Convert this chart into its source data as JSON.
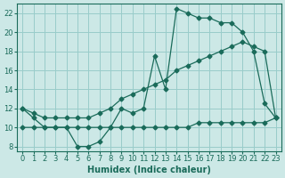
{
  "xlabel": "Humidex (Indice chaleur)",
  "xlim": [
    -0.5,
    23.5
  ],
  "ylim": [
    7.5,
    23.0
  ],
  "yticks": [
    8,
    10,
    12,
    14,
    16,
    18,
    20,
    22
  ],
  "xticks": [
    0,
    1,
    2,
    3,
    4,
    5,
    6,
    7,
    8,
    9,
    10,
    11,
    12,
    13,
    14,
    15,
    16,
    17,
    18,
    19,
    20,
    21,
    22,
    23
  ],
  "bg_color": "#cce8e6",
  "grid_color": "#99ccca",
  "line_color": "#1a6b5a",
  "line1_x": [
    0,
    1,
    2,
    3,
    4,
    5,
    6,
    7,
    8,
    9,
    10,
    11,
    12,
    13,
    14,
    15,
    16,
    17,
    18,
    19,
    20,
    21,
    22,
    23
  ],
  "line1_y": [
    12,
    11,
    10,
    10,
    10,
    8,
    8,
    8.5,
    10,
    12,
    11.5,
    12,
    17.5,
    14,
    22.5,
    22,
    21.5,
    21.5,
    21,
    21,
    20,
    18,
    12.5,
    11
  ],
  "line2_x": [
    0,
    1,
    2,
    3,
    4,
    5,
    6,
    7,
    8,
    9,
    10,
    11,
    12,
    13,
    14,
    15,
    16,
    17,
    18,
    19,
    20,
    21,
    22,
    23
  ],
  "line2_y": [
    10,
    10,
    10,
    10,
    10,
    10,
    10,
    10,
    10,
    10,
    10,
    10,
    10,
    10,
    10,
    10,
    10.5,
    10.5,
    10.5,
    10.5,
    10.5,
    10.5,
    10.5,
    11
  ],
  "line3_x": [
    0,
    1,
    2,
    3,
    4,
    5,
    6,
    7,
    8,
    9,
    10,
    11,
    12,
    13,
    14,
    15,
    16,
    17,
    18,
    19,
    20,
    21,
    22,
    23
  ],
  "line3_y": [
    12,
    11.5,
    11,
    11,
    11,
    11,
    11,
    11.5,
    12,
    13,
    13.5,
    14,
    14.5,
    15,
    16,
    16.5,
    17,
    17.5,
    18,
    18.5,
    19,
    18.5,
    18,
    11
  ],
  "marker": "D",
  "marker_size": 2.5,
  "linewidth": 0.9,
  "xlabel_fontsize": 7,
  "tick_fontsize": 6
}
